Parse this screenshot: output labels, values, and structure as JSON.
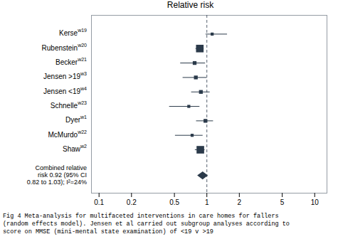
{
  "chart_data": {
    "type": "forest",
    "title": "Relative risk",
    "categories": [
      "Kerse",
      "Rubenstein",
      "Becker",
      "Jensen >19",
      "Jensen <19",
      "Schnelle",
      "Dyer",
      "McMurdo",
      "Shaw"
    ],
    "superscripts": [
      "w19",
      "w20",
      "w21",
      "w3",
      "w4",
      "w23",
      "w1",
      "w22",
      "w2"
    ],
    "values": [
      1.12,
      0.86,
      0.77,
      0.79,
      0.88,
      0.68,
      0.97,
      0.73,
      0.87
    ],
    "ci_low": [
      0.98,
      0.79,
      0.57,
      0.6,
      0.72,
      0.45,
      0.8,
      0.51,
      0.78
    ],
    "ci_high": [
      1.55,
      0.94,
      0.97,
      1.0,
      1.07,
      0.86,
      1.15,
      0.92,
      0.96
    ],
    "weights": [
      2.0,
      5.0,
      2.5,
      2.5,
      2.5,
      2.0,
      2.5,
      2.0,
      5.0
    ],
    "combined": {
      "value": 0.92,
      "ci_low": 0.82,
      "ci_high": 1.03,
      "label_lines": [
        "Combined relative",
        "risk 0.92 (95% CI",
        "0.82 to 1.03); I²=24%"
      ]
    },
    "reference_line": 1,
    "log": "x",
    "xlim": [
      0.085,
      13.0
    ],
    "xticks": [
      0.1,
      0.2,
      0.5,
      1,
      2,
      5,
      10
    ],
    "color": "#2b3a4a",
    "caption": "Fig 4 Meta-analysis for multifaceted interventions in care homes for fallers\n(random effects model). Jensen et al carried out subgroup analyses according to\nscore on MMSE (mini-mental state examination) of <19 v >19"
  }
}
